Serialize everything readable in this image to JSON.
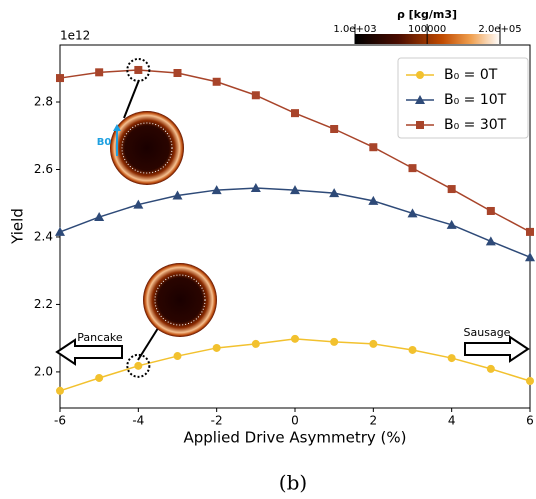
{
  "chart_data": {
    "type": "line",
    "x_label": "Applied Drive Asymmetry (%)",
    "y_label": "Yield",
    "y_offset_label": "1e12",
    "x": [
      -6,
      -5,
      -4,
      -3,
      -2,
      -1,
      0,
      1,
      2,
      3,
      4,
      5,
      6
    ],
    "series": [
      {
        "name": "B₀ = 0T",
        "color": "#f2c12e",
        "marker": "o",
        "values": [
          1.944,
          1.982,
          2.018,
          2.047,
          2.071,
          2.083,
          2.098,
          2.089,
          2.083,
          2.065,
          2.041,
          2.009,
          1.973
        ]
      },
      {
        "name": "B₀ = 10T",
        "color": "#2e4a78",
        "marker": "^",
        "values": [
          2.415,
          2.459,
          2.496,
          2.523,
          2.539,
          2.545,
          2.539,
          2.53,
          2.507,
          2.47,
          2.436,
          2.387,
          2.34
        ]
      },
      {
        "name": "B₀ = 30T",
        "color": "#a8442a",
        "marker": "s",
        "values": [
          2.871,
          2.888,
          2.895,
          2.886,
          2.86,
          2.82,
          2.767,
          2.72,
          2.666,
          2.604,
          2.542,
          2.477,
          2.415
        ]
      }
    ],
    "xlim": [
      -6,
      6
    ],
    "xticks": [
      -6,
      -4,
      -2,
      0,
      2,
      4,
      6
    ],
    "ylim": [
      1.893,
      2.969
    ],
    "yticks": [
      {
        "value": 2,
        "label": "2.0"
      },
      {
        "value": 2.2,
        "label": "2.2"
      },
      {
        "value": 2.4,
        "label": "2.4"
      },
      {
        "value": 2.6,
        "label": "2.6"
      },
      {
        "value": 2.8,
        "label": "2.8"
      }
    ],
    "legend": "upper right",
    "colorbar": {
      "label": "ρ [kg/m3]",
      "lim": [
        1000,
        200000
      ],
      "ticks": [
        {
          "value": 1000,
          "label": "1.0e+03"
        },
        100000,
        {
          "value": 200000,
          "label": "2.0e+05"
        }
      ]
    },
    "annotations": {
      "left": "Pancake",
      "right": "Sausage",
      "field": "B0"
    },
    "caption": "(b)"
  }
}
